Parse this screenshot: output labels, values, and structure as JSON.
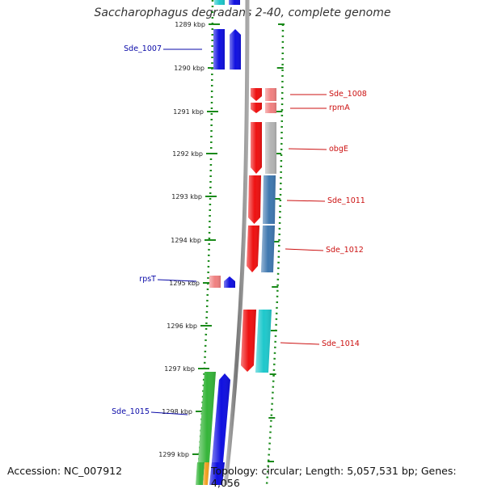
{
  "title": "Saccharophagus degradans 2-40, complete genome",
  "footer": {
    "accession": "Accession: NC_007912",
    "info": "Topology: circular; Length: 5,057,531 bp; Genes: 4,056"
  },
  "colors": {
    "forward_strand": "#1010e0",
    "reverse_strand": "#ee1111",
    "light_red": "#f08080",
    "steel_blue": "#3f78b0",
    "cyan": "#1fc8cc",
    "green": "#36b53a",
    "gray": "#b4b4b4",
    "orange": "#f0a020",
    "ruler": "#1a8a1a",
    "backbone": "#888888",
    "label_left": "#0a0aa8",
    "label_right": "#cc1111"
  },
  "ticks": [
    "1289 kbp",
    "1290 kbp",
    "1291 kbp",
    "1292 kbp",
    "1293 kbp",
    "1294 kbp",
    "1295 kbp",
    "1296 kbp",
    "1297 kbp",
    "1298 kbp",
    "1299 kbp"
  ],
  "gene_labels_left": [
    "Sde_1007",
    "rpsT",
    "Sde_1015"
  ],
  "gene_labels_right": [
    "Sde_1008",
    "rpmA",
    "obgE",
    "Sde_1011",
    "Sde_1012",
    "Sde_1014"
  ]
}
